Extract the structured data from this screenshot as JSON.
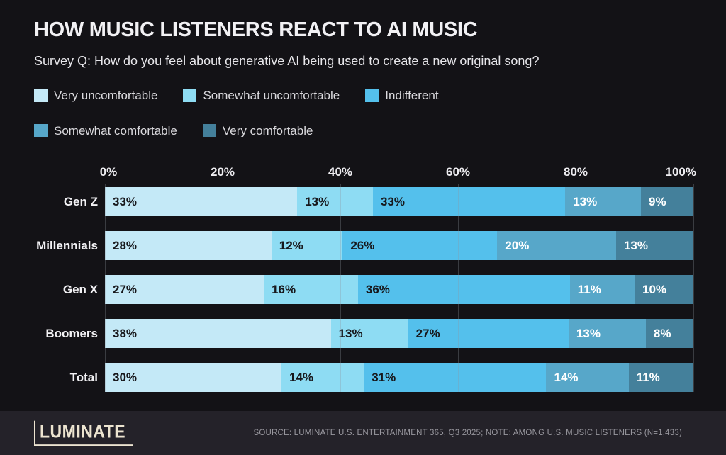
{
  "title": "HOW MUSIC LISTENERS REACT TO AI MUSIC",
  "subtitle": "Survey Q: How do you feel about generative AI being used to create a new original song?",
  "chart_data": {
    "type": "bar",
    "stacked": true,
    "orientation": "horizontal",
    "grid": true,
    "legend_position": "top",
    "value_suffix": "%",
    "categories": [
      "Gen Z",
      "Millennials",
      "Gen X",
      "Boomers",
      "Total"
    ],
    "series": [
      {
        "name": "Very uncomfortable",
        "color": "#c4e9f7",
        "label_text_color": "#17171b",
        "values": [
          33,
          28,
          27,
          38,
          30
        ]
      },
      {
        "name": "Somewhat uncomfortable",
        "color": "#8edcf3",
        "label_text_color": "#17171b",
        "values": [
          13,
          12,
          16,
          13,
          14
        ]
      },
      {
        "name": "Indifferent",
        "color": "#54c0ec",
        "label_text_color": "#17171b",
        "values": [
          33,
          26,
          36,
          27,
          31
        ]
      },
      {
        "name": "Somewhat comfortable",
        "color": "#57a7c9",
        "label_text_color": "#ffffff",
        "values": [
          13,
          20,
          11,
          13,
          14
        ]
      },
      {
        "name": "Very comfortable",
        "color": "#44809b",
        "label_text_color": "#ffffff",
        "values": [
          9,
          13,
          10,
          8,
          11
        ]
      }
    ],
    "x_axis": {
      "ticks": [
        "0%",
        "20%",
        "40%",
        "60%",
        "80%",
        "100%"
      ],
      "min": 0,
      "max": 100
    }
  },
  "footer": {
    "logo_text": "LUMINATE",
    "source_text": "SOURCE: LUMINATE U.S. ENTERTAINMENT 365, Q3 2025; NOTE: AMONG U.S. MUSIC LISTENERS (N=1,433)"
  },
  "colors": {
    "background": "#131216",
    "footer_background": "#242229",
    "title_text": "#f2f1f4",
    "logo_text": "#ece4d0",
    "gridline": "rgba(142,148,160,0.32)"
  }
}
